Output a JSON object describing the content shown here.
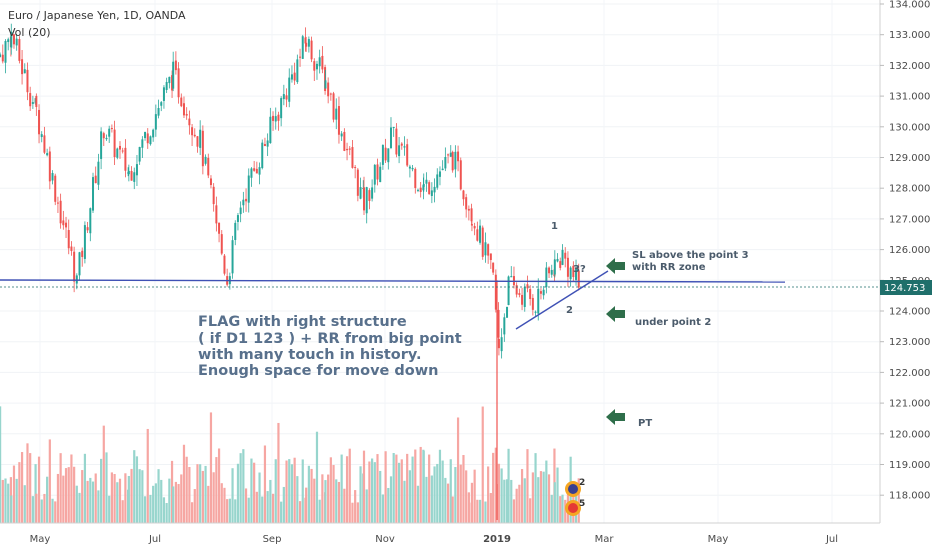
{
  "header": {
    "title": "Euro / Japanese Yen, 1D, OANDA",
    "volume_label": "Vol (20)"
  },
  "colors": {
    "up": "#26a69a",
    "down": "#ef5350",
    "vol_up": "#97d5cd",
    "vol_down": "#f6a6a2",
    "line": "#3f51b5",
    "price_tag": "#1f6f6b",
    "arrow": "#2e6e4a"
  },
  "current_price": "124.753",
  "annotations": {
    "flag_lines": [
      "FLAG with right structure",
      "( if D1 123 ) + RR from big point",
      "with many touch in history.",
      "Enough space for move down"
    ],
    "sl_lines": [
      "SL above the point 3",
      "with RR zone"
    ],
    "under_point": "under point 2",
    "pt": "PT",
    "label_1": "1",
    "label_2": "2",
    "label_3": "3?",
    "badge_a": "2",
    "badge_b": "5"
  },
  "chart_data": {
    "type": "candlestick",
    "title": "Euro / Japanese Yen, 1D, OANDA",
    "y_ticks": [
      "134.000",
      "133.000",
      "132.000",
      "131.000",
      "130.000",
      "129.000",
      "128.000",
      "127.000",
      "126.000",
      "125.000",
      "124.000",
      "123.000",
      "122.000",
      "121.000",
      "120.000",
      "119.000",
      "118.000"
    ],
    "x_ticks": [
      "May",
      "Jul",
      "Sep",
      "Nov",
      "2019",
      "Mar",
      "May",
      "Jul"
    ],
    "ylim": [
      117.5,
      134.2
    ],
    "price_path": [
      {
        "date": "2018-04-15",
        "close": 131.8
      },
      {
        "date": "2018-04-25",
        "close": 133.0
      },
      {
        "date": "2018-05-08",
        "close": 130.5
      },
      {
        "date": "2018-05-29",
        "close": 125.0
      },
      {
        "date": "2018-06-12",
        "close": 130.0
      },
      {
        "date": "2018-06-25",
        "close": 128.5
      },
      {
        "date": "2018-07-18",
        "close": 131.7
      },
      {
        "date": "2018-08-01",
        "close": 129.5
      },
      {
        "date": "2018-08-15",
        "close": 125.0
      },
      {
        "date": "2018-08-22",
        "close": 127.5
      },
      {
        "date": "2018-09-25",
        "close": 132.8
      },
      {
        "date": "2018-10-05",
        "close": 131.5
      },
      {
        "date": "2018-10-25",
        "close": 127.5
      },
      {
        "date": "2018-11-08",
        "close": 129.7
      },
      {
        "date": "2018-11-25",
        "close": 128.0
      },
      {
        "date": "2018-12-10",
        "close": 129.0
      },
      {
        "date": "2018-12-20",
        "close": 127.2
      },
      {
        "date": "2018-12-31",
        "close": 125.0
      },
      {
        "date": "2019-01-03",
        "close": 122.8
      },
      {
        "date": "2019-01-08",
        "close": 124.8
      },
      {
        "date": "2019-01-22",
        "close": 124.3
      },
      {
        "date": "2019-02-01",
        "close": 125.5
      },
      {
        "date": "2019-02-05",
        "close": 125.8
      },
      {
        "date": "2019-02-14",
        "close": 124.7
      }
    ],
    "horizontal_line": 124.95,
    "trendline": [
      {
        "date": "2019-01-13",
        "value": 123.4
      },
      {
        "date": "2019-03-01",
        "value": 125.2
      }
    ]
  }
}
